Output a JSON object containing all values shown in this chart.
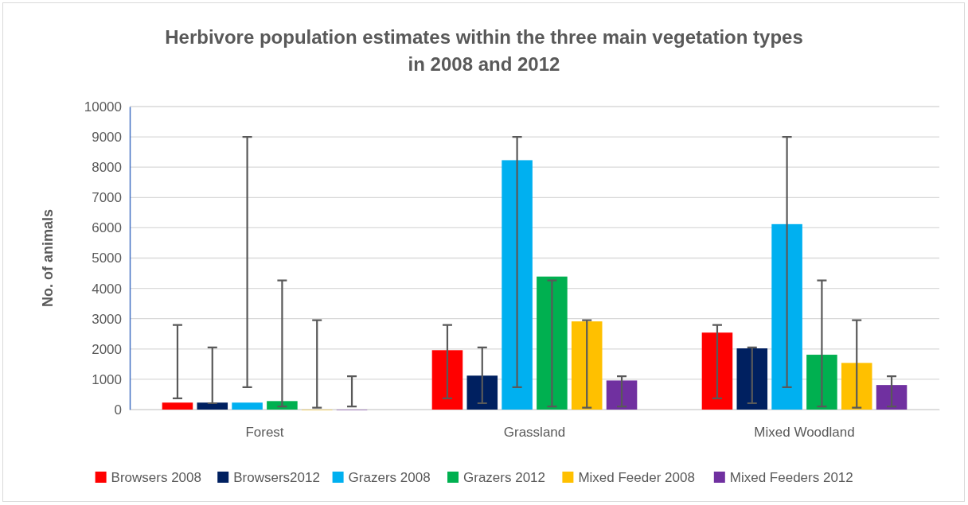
{
  "chart_data": {
    "type": "bar",
    "title": "Herbivore population estimates within the three main vegetation types\nin 2008 and 2012",
    "ylabel": "No. of animals",
    "categories": [
      "Forest",
      "Grassland",
      "Mixed Woodland"
    ],
    "series": [
      {
        "name": "Browsers 2008",
        "color": "#ff0000",
        "values": [
          230,
          1960,
          2540
        ],
        "errors": [
          [
            370,
            2790
          ],
          [
            370,
            2790
          ],
          [
            370,
            2790
          ]
        ]
      },
      {
        "name": "Browsers2012",
        "color": "#002060",
        "values": [
          230,
          1120,
          2020
        ],
        "errors": [
          [
            210,
            2050
          ],
          [
            210,
            2050
          ],
          [
            210,
            2050
          ]
        ]
      },
      {
        "name": "Grazers 2008",
        "color": "#00b0f0",
        "values": [
          230,
          8230,
          6120
        ],
        "errors": [
          [
            740,
            9000
          ],
          [
            740,
            9000
          ],
          [
            740,
            9000
          ]
        ]
      },
      {
        "name": "Grazers 2012",
        "color": "#00b050",
        "values": [
          280,
          4390,
          1810
        ],
        "errors": [
          [
            100,
            4260
          ],
          [
            100,
            4260
          ],
          [
            100,
            4260
          ]
        ]
      },
      {
        "name": "Mixed Feeder 2008",
        "color": "#ffc000",
        "values": [
          0,
          2910,
          1540
        ],
        "errors": [
          [
            60,
            2950
          ],
          [
            60,
            2950
          ],
          [
            60,
            2950
          ]
        ]
      },
      {
        "name": "Mixed Feeders 2012",
        "color": "#7030a0",
        "values": [
          0,
          960,
          810
        ],
        "errors": [
          [
            100,
            1100
          ],
          [
            100,
            1100
          ],
          [
            100,
            1100
          ]
        ]
      }
    ],
    "ylim": [
      0,
      10000
    ],
    "yticks": [
      0,
      1000,
      2000,
      3000,
      4000,
      5000,
      6000,
      7000,
      8000,
      9000,
      10000
    ],
    "grid": "y",
    "legend": "bottom"
  }
}
